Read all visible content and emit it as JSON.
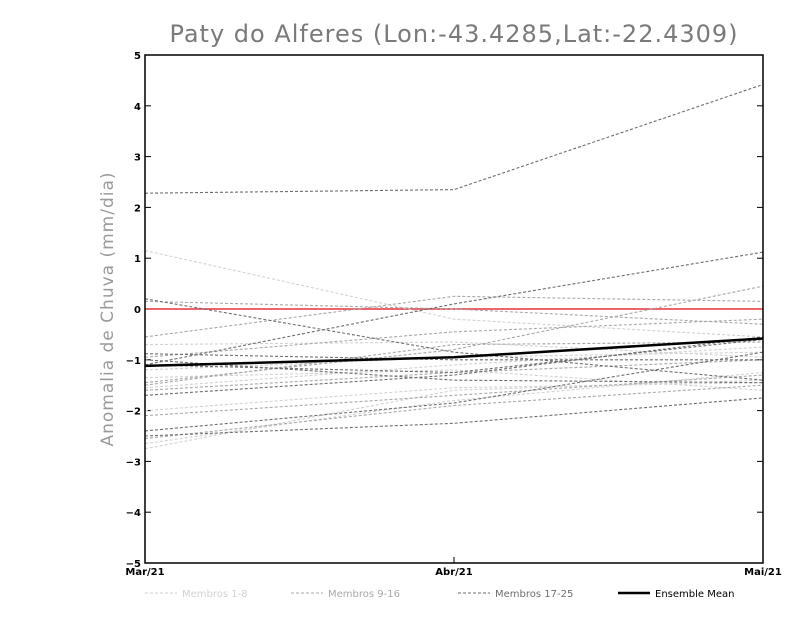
{
  "chart_data": {
    "type": "line",
    "title": "Paty do Alferes (Lon:-43.4285,Lat:-22.4309)",
    "xlabel": "",
    "ylabel": "Anomalia de Chuva (mm/dia)",
    "categories": [
      "Mar/21",
      "Abr/21",
      "Mai/21"
    ],
    "ylim": [
      -5,
      5
    ],
    "yticks": [
      "5",
      "4",
      "3",
      "2",
      "1",
      "0",
      "-1",
      "-2",
      "-3",
      "-4",
      "-5"
    ],
    "zero_line_color": "#e8333c",
    "legend": [
      {
        "label": "Membros 1-8",
        "color": "#d2d2d2",
        "style": "dashed"
      },
      {
        "label": "Membros 9-16",
        "color": "#a8a8a8",
        "style": "dashed"
      },
      {
        "label": "Membros 17-25",
        "color": "#6e6e6e",
        "style": "dashed"
      },
      {
        "label": "Ensemble Mean",
        "color": "#000000",
        "style": "solid"
      }
    ],
    "series": [
      {
        "name": "m1",
        "group": 0,
        "values": [
          1.15,
          -0.2,
          -0.55
        ]
      },
      {
        "name": "m2",
        "group": 0,
        "values": [
          -0.7,
          -0.65,
          -0.95
        ]
      },
      {
        "name": "m3",
        "group": 0,
        "values": [
          -1.55,
          -1.1,
          -0.75
        ]
      },
      {
        "name": "m4",
        "group": 0,
        "values": [
          -1.35,
          -1.2,
          -1.6
        ]
      },
      {
        "name": "m5",
        "group": 0,
        "values": [
          -2.0,
          -1.55,
          -1.45
        ]
      },
      {
        "name": "m6",
        "group": 0,
        "values": [
          -2.65,
          -1.8,
          -1.25
        ]
      },
      {
        "name": "m7",
        "group": 0,
        "values": [
          -2.75,
          -1.6,
          -1.4
        ]
      },
      {
        "name": "m8",
        "group": 0,
        "values": [
          -1.2,
          -0.95,
          -0.85
        ]
      },
      {
        "name": "m9",
        "group": 1,
        "values": [
          0.15,
          0.0,
          -0.3
        ]
      },
      {
        "name": "m10",
        "group": 1,
        "values": [
          -0.55,
          0.25,
          0.15
        ]
      },
      {
        "name": "m11",
        "group": 1,
        "values": [
          -1.45,
          -0.8,
          0.45
        ]
      },
      {
        "name": "m12",
        "group": 1,
        "values": [
          -0.95,
          -0.45,
          -0.2
        ]
      },
      {
        "name": "m13",
        "group": 1,
        "values": [
          -1.6,
          -1.25,
          -1.0
        ]
      },
      {
        "name": "m14",
        "group": 1,
        "values": [
          -1.5,
          -0.7,
          -0.65
        ]
      },
      {
        "name": "m15",
        "group": 1,
        "values": [
          -2.1,
          -1.7,
          -1.3
        ]
      },
      {
        "name": "m16",
        "group": 1,
        "values": [
          -2.55,
          -1.9,
          -1.5
        ]
      },
      {
        "name": "m17",
        "group": 2,
        "values": [
          2.28,
          2.35,
          4.42
        ]
      },
      {
        "name": "m18",
        "group": 2,
        "values": [
          -1.1,
          0.1,
          1.12
        ]
      },
      {
        "name": "m19",
        "group": 2,
        "values": [
          0.2,
          -0.85,
          -1.4
        ]
      },
      {
        "name": "m20",
        "group": 2,
        "values": [
          -0.88,
          -1.0,
          -1.0
        ]
      },
      {
        "name": "m21",
        "group": 2,
        "values": [
          -2.4,
          -1.85,
          -0.85
        ]
      },
      {
        "name": "m22",
        "group": 2,
        "values": [
          -2.5,
          -2.25,
          -1.75
        ]
      },
      {
        "name": "m23",
        "group": 2,
        "values": [
          -1.0,
          -1.4,
          -1.45
        ]
      },
      {
        "name": "m24",
        "group": 2,
        "values": [
          -1.7,
          -1.3,
          -0.55
        ]
      },
      {
        "name": "m25",
        "group": 2,
        "values": [
          -1.1,
          -1.25,
          -0.6
        ]
      },
      {
        "name": "Ensemble Mean",
        "group": 3,
        "values": [
          -1.12,
          -0.95,
          -0.58
        ]
      }
    ]
  }
}
